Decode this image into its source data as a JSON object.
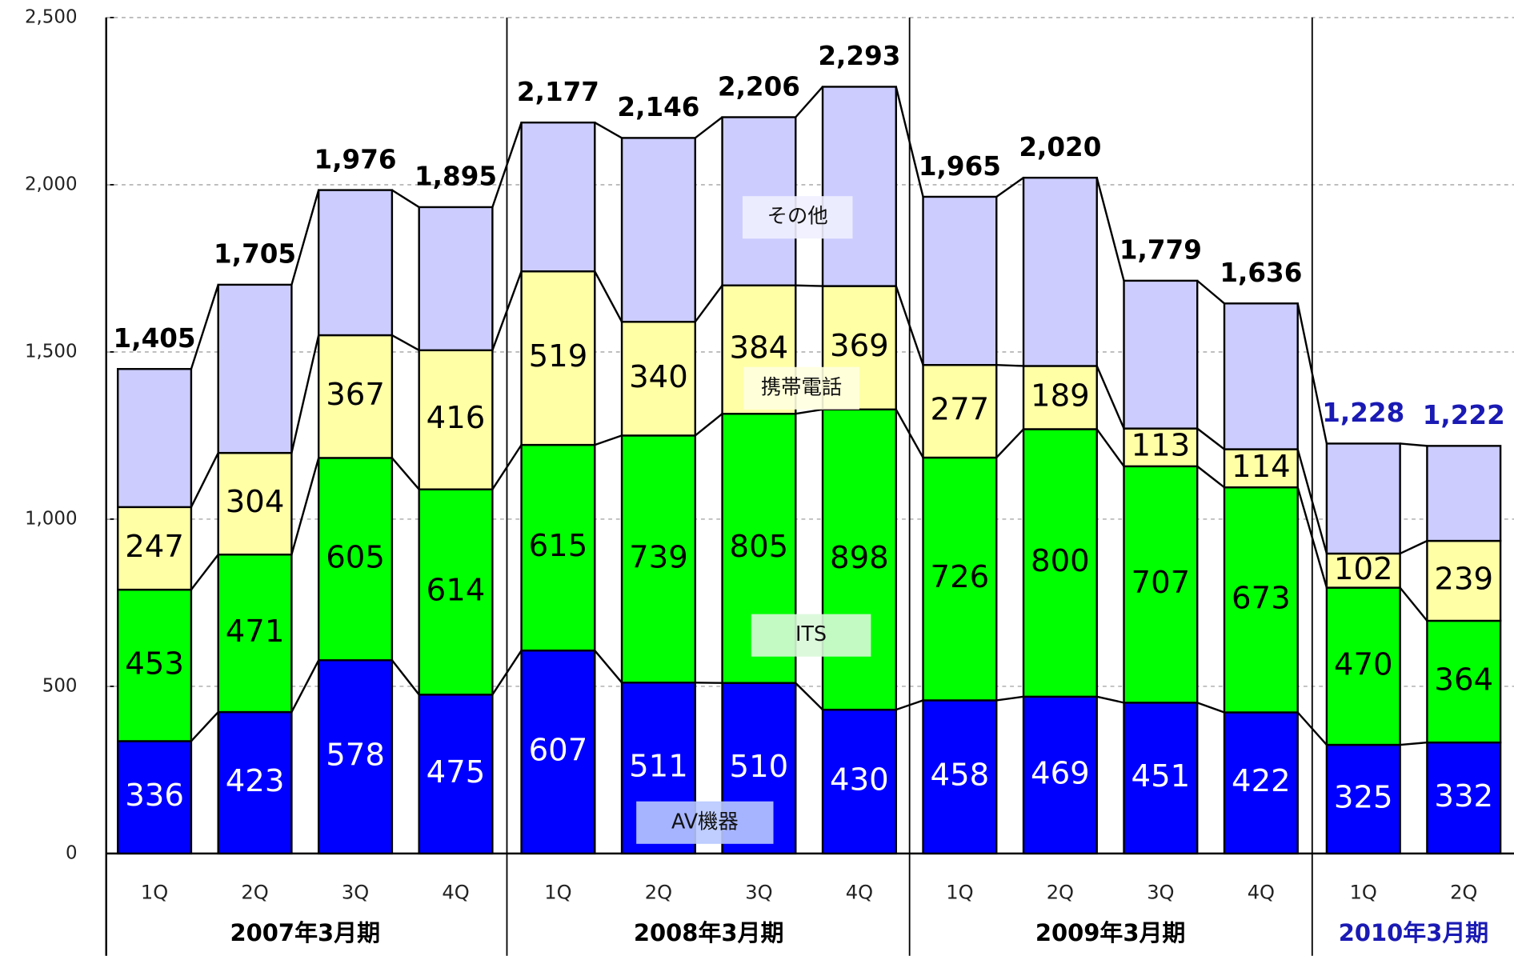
{
  "chart_data": {
    "type": "stacked_bar",
    "groups": [
      {
        "name": "2007年3月期",
        "color": "#000000",
        "categories": [
          "1Q",
          "2Q",
          "3Q",
          "4Q"
        ]
      },
      {
        "name": "2008年3月期",
        "color": "#000000",
        "categories": [
          "1Q",
          "2Q",
          "3Q",
          "4Q"
        ]
      },
      {
        "name": "2009年3月期",
        "color": "#000000",
        "categories": [
          "1Q",
          "2Q",
          "3Q",
          "4Q"
        ]
      },
      {
        "name": "2010年3月期",
        "color": "#1a1ab4",
        "categories": [
          "1Q",
          "2Q"
        ]
      }
    ],
    "series": [
      {
        "name": "AV機器",
        "color": "#0000ff",
        "label_color": "#ffffff",
        "labels": true,
        "values": [
          336,
          423,
          578,
          475,
          607,
          511,
          510,
          430,
          458,
          469,
          451,
          422,
          325,
          332
        ]
      },
      {
        "name": "ITS",
        "color": "#00ff00",
        "label_color": "#000000",
        "labels": true,
        "values": [
          453,
          471,
          605,
          614,
          615,
          739,
          805,
          898,
          726,
          800,
          707,
          673,
          470,
          364
        ]
      },
      {
        "name": "携帯電話",
        "color": "#ffffa6",
        "label_color": "#000000",
        "labels": true,
        "values": [
          247,
          304,
          367,
          416,
          519,
          340,
          384,
          369,
          277,
          189,
          113,
          114,
          102,
          239
        ]
      },
      {
        "name": "その他",
        "color": "#ccccff",
        "label_color": "#000000",
        "labels": false,
        "values": [
          413,
          503,
          434,
          428,
          445,
          550,
          503,
          596,
          503,
          563,
          442,
          436,
          329,
          284
        ]
      }
    ],
    "totals": [
      {
        "value": 1405,
        "label": "1,405"
      },
      {
        "value": 1705,
        "label": "1,705"
      },
      {
        "value": 1976,
        "label": "1,976"
      },
      {
        "value": 1895,
        "label": "1,895"
      },
      {
        "value": 2177,
        "label": "2,177"
      },
      {
        "value": 2146,
        "label": "2,146"
      },
      {
        "value": 2206,
        "label": "2,206"
      },
      {
        "value": 2293,
        "label": "2,293"
      },
      {
        "value": 1965,
        "label": "1,965"
      },
      {
        "value": 2020,
        "label": "2,020"
      },
      {
        "value": 1779,
        "label": "1,779"
      },
      {
        "value": 1636,
        "label": "1,636"
      },
      {
        "value": 1228,
        "label": "1,228"
      },
      {
        "value": 1222,
        "label": "1,222"
      }
    ],
    "ylim": [
      0,
      2500
    ],
    "yticks": [
      0,
      500,
      {
        "value": 1000,
        "label": "1,000"
      },
      {
        "value": 1500,
        "label": "1,500"
      },
      {
        "value": 2000,
        "label": "2,000"
      },
      {
        "value": 2500,
        "label": "2,500"
      }
    ],
    "grid": true
  }
}
